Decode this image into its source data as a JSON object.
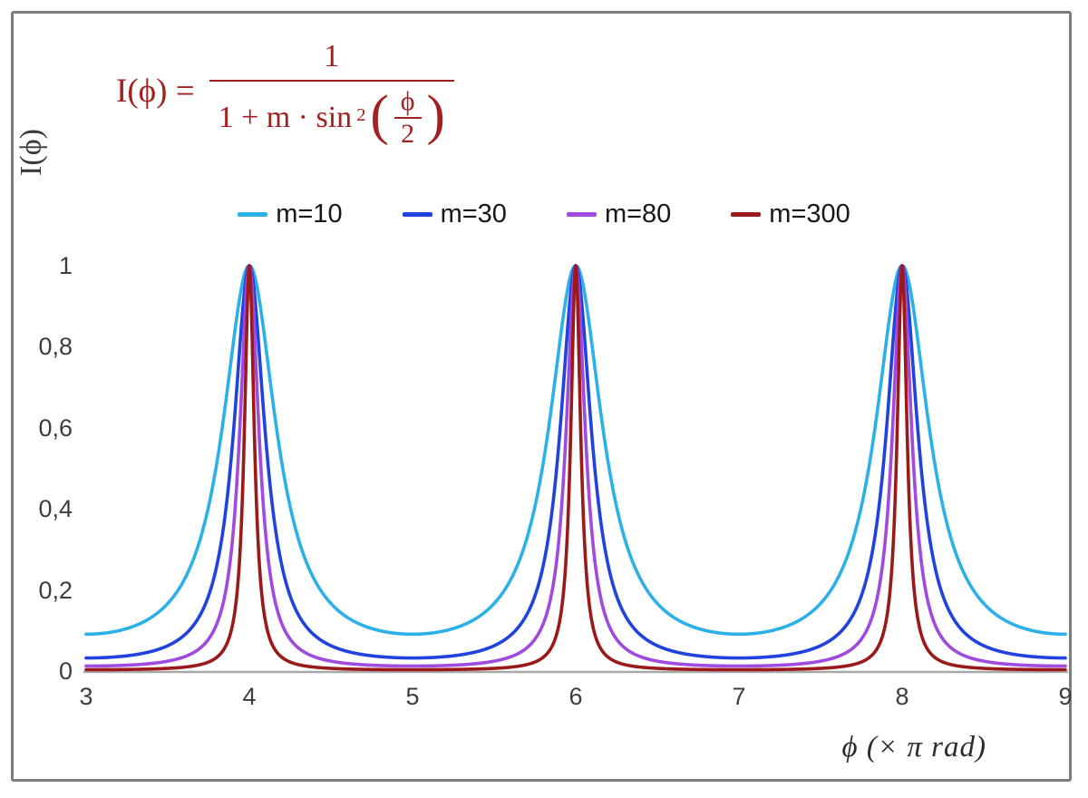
{
  "chart": {
    "formula": {
      "lhs": "I(ϕ) =",
      "numerator": "1",
      "den_prefix": "1 + m · sin",
      "den_exponent": "2",
      "lparen": "(",
      "rparen": ")",
      "inner_numerator": "ϕ",
      "inner_denominator": "2",
      "color": "#a32020"
    },
    "y_axis_label": "I(ϕ)",
    "x_axis_title": "ϕ  (× π rad)"
  },
  "chart_data": {
    "type": "line",
    "title": "",
    "formula_text": "I(φ) = 1 / (1 + m·sin²(φ/2))",
    "xlabel": "ϕ (× π rad)",
    "ylabel": "I(ϕ)",
    "x_unit": "π rad",
    "xlim": [
      3,
      9
    ],
    "ylim": [
      0,
      1
    ],
    "grid": false,
    "legend_position": "top-center",
    "axis_color": "#a8a8a8",
    "decimal_separator": ",",
    "x_ticks": [
      {
        "value": 3,
        "label": "3"
      },
      {
        "value": 4,
        "label": "4"
      },
      {
        "value": 5,
        "label": "5"
      },
      {
        "value": 6,
        "label": "6"
      },
      {
        "value": 7,
        "label": "7"
      },
      {
        "value": 8,
        "label": "8"
      },
      {
        "value": 9,
        "label": "9"
      }
    ],
    "y_ticks": [
      {
        "value": 1,
        "label": "1"
      },
      {
        "value": 0.8,
        "label": "0,8"
      },
      {
        "value": 0.6,
        "label": "0,6"
      },
      {
        "value": 0.4,
        "label": "0,4"
      },
      {
        "value": 0.2,
        "label": "0,2"
      },
      {
        "value": 0,
        "label": "0"
      }
    ],
    "function": "I(x) = 1 / (1 + m * sin(pi*x/2)^2), x in units of pi rad",
    "peaks_at_x": [
      4,
      6,
      8
    ],
    "peak_value": 1,
    "series": [
      {
        "name": "m=10",
        "m": 10,
        "color": "#2cb0e8",
        "min_value": 0.0909
      },
      {
        "name": "m=30",
        "m": 30,
        "color": "#2042df",
        "min_value": 0.0323
      },
      {
        "name": "m=80",
        "m": 80,
        "color": "#a04ae0",
        "min_value": 0.0123
      },
      {
        "name": "m=300",
        "m": 300,
        "color": "#9a1a1a",
        "min_value": 0.0033
      }
    ]
  }
}
